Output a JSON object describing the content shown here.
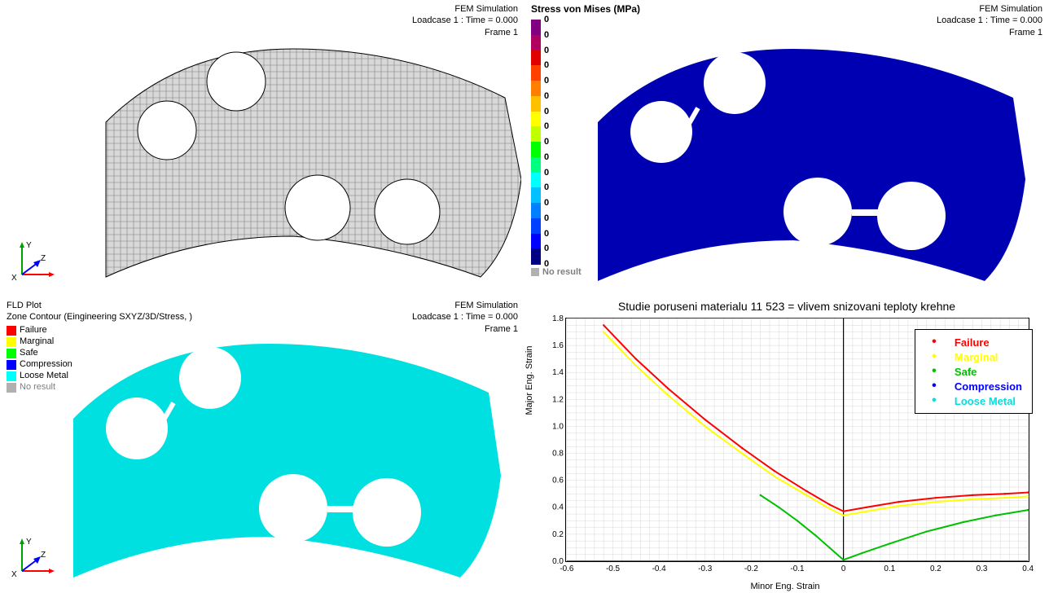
{
  "panel1": {
    "meta_line1": "FEM Simulation",
    "meta_line2": "Loadcase 1 : Time = 0.000",
    "meta_line3": "Frame 1",
    "axis": {
      "x": "X",
      "y": "Y",
      "z": "Z"
    },
    "mesh_fill": "#d8d8d8",
    "mesh_stroke": "#808080"
  },
  "panel2": {
    "meta_line1": "FEM Simulation",
    "meta_line2": "Loadcase 1 : Time = 0.000",
    "meta_line3": "Frame 1",
    "colorbar_title": "Stress von Mises (MPa)",
    "fill_color": "#0000b3",
    "no_result_label": "No result",
    "colorbar": {
      "colors": [
        "#800080",
        "#b00060",
        "#e00000",
        "#ff4000",
        "#ff8000",
        "#ffc000",
        "#ffff00",
        "#c0ff00",
        "#00ff00",
        "#00ff80",
        "#00ffff",
        "#00c0ff",
        "#0080ff",
        "#0040ff",
        "#0000ff",
        "#000080"
      ],
      "ticks": [
        "0",
        "0",
        "0",
        "0",
        "0",
        "0",
        "0",
        "0",
        "0",
        "0",
        "0",
        "0",
        "0",
        "0",
        "0",
        "0",
        "0"
      ]
    }
  },
  "panel3": {
    "meta_line1": "FEM Simulation",
    "meta_line2": "Loadcase 1 : Time = 0.000",
    "meta_line3": "Frame 1",
    "title1": "FLD Plot",
    "title2": "Zone Contour (Eingineering SXYZ/3D/Stress, )",
    "fill_color": "#00e0e0",
    "axis": {
      "x": "X",
      "y": "Y",
      "z": "Z"
    },
    "legend": [
      {
        "label": "Failure",
        "color": "#ff0000"
      },
      {
        "label": "Marginal",
        "color": "#ffff00"
      },
      {
        "label": "Safe",
        "color": "#00ff00"
      },
      {
        "label": "Compression",
        "color": "#0000ff"
      },
      {
        "label": "Loose Metal",
        "color": "#00ffff"
      }
    ],
    "no_result_label": "No result"
  },
  "panel4": {
    "title": "Studie poruseni materialu 11 523 = vlivem snizovani teploty krehne",
    "xlabel": "Minor Eng. Strain",
    "ylabel": "Major Eng. Strain",
    "xlim": [
      -0.6,
      0.4
    ],
    "ylim": [
      0,
      1.8
    ],
    "xticks": [
      -0.6,
      -0.5,
      -0.4,
      -0.3,
      -0.2,
      -0.1,
      0,
      0.1,
      0.2,
      0.3,
      0.4
    ],
    "yticks": [
      0,
      0.2,
      0.4,
      0.6,
      0.8,
      1.0,
      1.2,
      1.4,
      1.6,
      1.8
    ],
    "grid_color": "#d8d8d8",
    "legend": [
      {
        "label": "Failure",
        "color": "#ff0000"
      },
      {
        "label": "Marginal",
        "color": "#ffff00"
      },
      {
        "label": "Safe",
        "color": "#00c000"
      },
      {
        "label": "Compression",
        "color": "#0000ff"
      },
      {
        "label": "Loose Metal",
        "color": "#00e0e0"
      }
    ],
    "curves": {
      "failure": {
        "color": "#ff0000",
        "width": 2,
        "points": [
          [
            -0.52,
            1.75
          ],
          [
            -0.45,
            1.5
          ],
          [
            -0.38,
            1.28
          ],
          [
            -0.3,
            1.05
          ],
          [
            -0.22,
            0.84
          ],
          [
            -0.15,
            0.67
          ],
          [
            -0.08,
            0.52
          ],
          [
            -0.03,
            0.42
          ],
          [
            0.0,
            0.37
          ],
          [
            0.05,
            0.4
          ],
          [
            0.12,
            0.44
          ],
          [
            0.2,
            0.47
          ],
          [
            0.28,
            0.49
          ],
          [
            0.35,
            0.5
          ],
          [
            0.4,
            0.51
          ]
        ]
      },
      "marginal": {
        "color": "#ffff00",
        "width": 2,
        "points": [
          [
            -0.52,
            1.7
          ],
          [
            -0.45,
            1.45
          ],
          [
            -0.38,
            1.23
          ],
          [
            -0.3,
            1.0
          ],
          [
            -0.22,
            0.8
          ],
          [
            -0.15,
            0.63
          ],
          [
            -0.08,
            0.49
          ],
          [
            -0.03,
            0.39
          ],
          [
            0.0,
            0.34
          ],
          [
            0.05,
            0.37
          ],
          [
            0.12,
            0.41
          ],
          [
            0.2,
            0.44
          ],
          [
            0.28,
            0.46
          ],
          [
            0.35,
            0.47
          ],
          [
            0.4,
            0.48
          ]
        ]
      },
      "safe": {
        "color": "#00c000",
        "width": 2,
        "points": [
          [
            -0.18,
            0.49
          ],
          [
            -0.14,
            0.4
          ],
          [
            -0.1,
            0.3
          ],
          [
            -0.06,
            0.19
          ],
          [
            -0.03,
            0.1
          ],
          [
            0.0,
            0.01
          ],
          [
            0.04,
            0.06
          ],
          [
            0.1,
            0.13
          ],
          [
            0.18,
            0.22
          ],
          [
            0.26,
            0.29
          ],
          [
            0.33,
            0.34
          ],
          [
            0.4,
            0.38
          ]
        ]
      }
    }
  }
}
